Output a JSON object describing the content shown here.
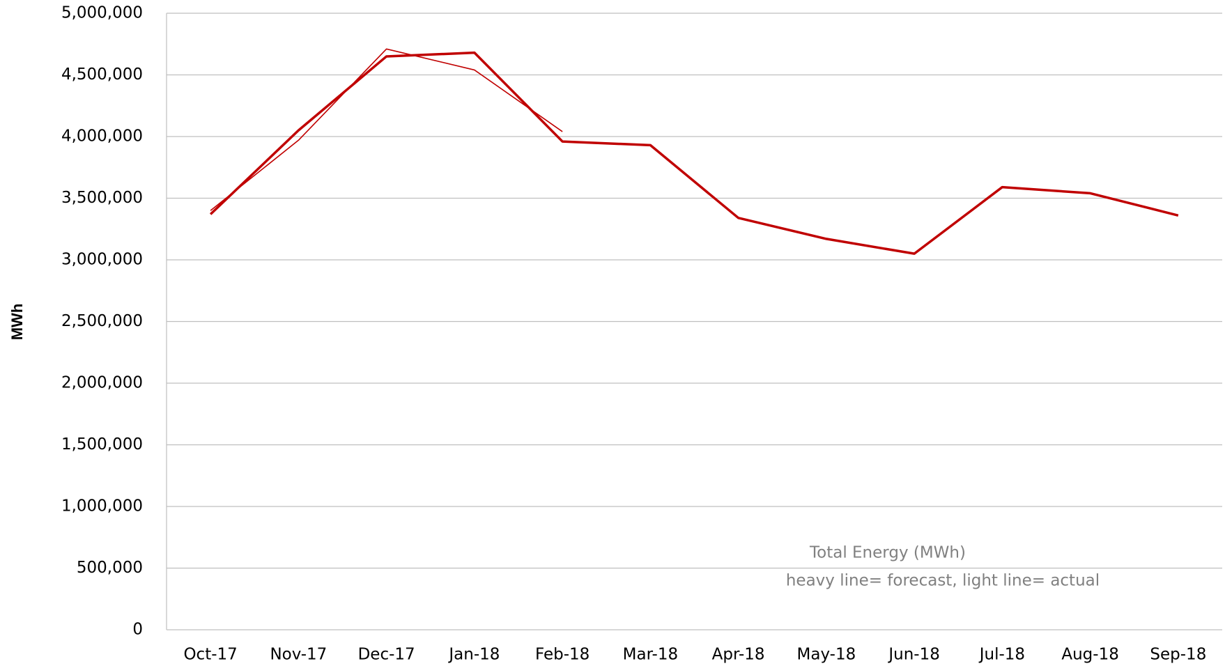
{
  "chart_data": {
    "type": "line",
    "y_label": "MWh",
    "annotations": [
      "Total Energy (MWh)",
      "heavy line= forecast, light line= actual"
    ],
    "categories": [
      "Oct-17",
      "Nov-17",
      "Dec-17",
      "Jan-18",
      "Feb-18",
      "Mar-18",
      "Apr-18",
      "May-18",
      "Jun-18",
      "Jul-18",
      "Aug-18",
      "Sep-18"
    ],
    "series": [
      {
        "color": "#c00000",
        "width": 3.5,
        "values": [
          3370000,
          4050000,
          4650000,
          4680000,
          3960000,
          3930000,
          3340000,
          3170000,
          3050000,
          3590000,
          3540000,
          3360000
        ]
      },
      {
        "color": "#c00000",
        "width": 1.6,
        "values": [
          3400000,
          3970000,
          4710000,
          4540000,
          4040000,
          null,
          null,
          null,
          null,
          null,
          null,
          null
        ]
      }
    ],
    "ylim": [
      0,
      5000000
    ],
    "yticks": [
      0,
      {
        "value": 500000,
        "label": "500,000"
      },
      {
        "value": 1000000,
        "label": "1,000,000"
      },
      {
        "value": 1500000,
        "label": "1,500,000"
      },
      {
        "value": 2000000,
        "label": "2,000,000"
      },
      {
        "value": 2500000,
        "label": "2,500,000"
      },
      {
        "value": 3000000,
        "label": "3,000,000"
      },
      {
        "value": 3500000,
        "label": "3,500,000"
      },
      {
        "value": 4000000,
        "label": "4,000,000"
      },
      {
        "value": 4500000,
        "label": "4,500,000"
      },
      {
        "value": 5000000,
        "label": "5,000,000"
      }
    ],
    "grid": true
  }
}
